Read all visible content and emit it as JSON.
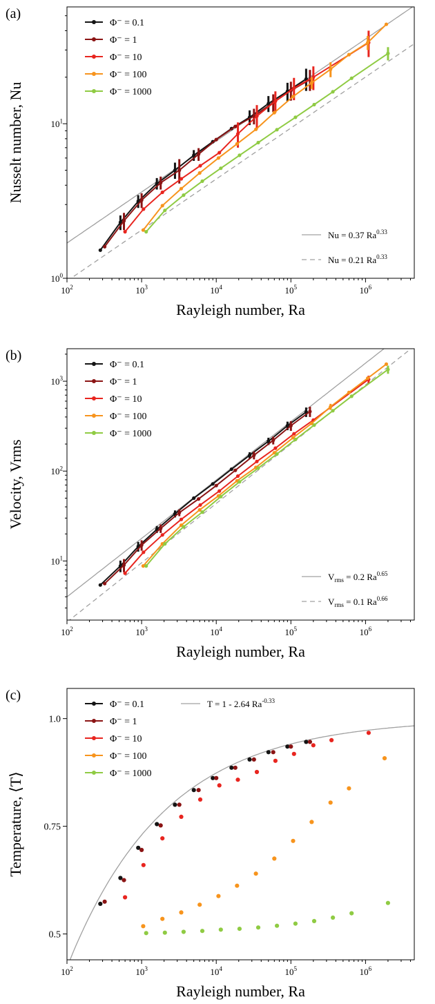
{
  "figure": {
    "colors": {
      "phi_0.1": "#141414",
      "phi_1": "#8b1414",
      "phi_10": "#e8251f",
      "phi_100": "#f7941d",
      "phi_1000": "#8fcb43",
      "fit": "#a0a0a0"
    }
  },
  "chart_data": [
    {
      "panel_label": "(a)",
      "type": "line",
      "xscale": "log",
      "yscale": "log",
      "xlim": [
        100,
        4500000
      ],
      "ylim": [
        1,
        57
      ],
      "xlabel": "Rayleigh number, Ra",
      "ylabel": "Nusselt number, Nu",
      "xticks": [
        {
          "value": 100,
          "base": "10",
          "exp": "2"
        },
        {
          "value": 1000,
          "base": "10",
          "exp": "3"
        },
        {
          "value": 10000,
          "base": "10",
          "exp": "4"
        },
        {
          "value": 100000,
          "base": "10",
          "exp": "5"
        },
        {
          "value": 1000000,
          "base": "10",
          "exp": "6"
        }
      ],
      "yticks": [
        {
          "value": 1,
          "base": "10",
          "exp": "0"
        },
        {
          "value": 10,
          "base": "10",
          "exp": "1"
        }
      ],
      "legend_position": "top-left",
      "fit_legend_position": "bottom-right",
      "series": [
        {
          "name": "Φ⁻ = 0.1",
          "color": "#141414",
          "x": [
            280,
            520,
            900,
            1600,
            2800,
            5000,
            9000,
            16000,
            28000,
            50000,
            90000,
            160000
          ],
          "y": [
            1.52,
            2.3,
            3.15,
            4.1,
            5.0,
            6.25,
            7.65,
            9.3,
            11.0,
            13.5,
            16.2,
            19.5
          ],
          "err": [
            0,
            0.25,
            0.3,
            0.35,
            0.6,
            0.5,
            0,
            0,
            1.2,
            1.6,
            2.2,
            3.2
          ]
        },
        {
          "name": "Φ⁻ = 1",
          "color": "#8b1414",
          "x": [
            320,
            580,
            1000,
            1800,
            3200,
            5800,
            10000,
            18000,
            32000,
            58000,
            100000,
            180000
          ],
          "y": [
            1.6,
            2.35,
            3.2,
            4.15,
            5.0,
            6.35,
            7.9,
            9.6,
            11.2,
            13.7,
            16.4,
            19.3
          ],
          "err": [
            0,
            0.3,
            0.35,
            0.4,
            0.9,
            0.6,
            0,
            0,
            1.3,
            1.8,
            2.3,
            3.0
          ]
        },
        {
          "name": "Φ⁻ = 10",
          "color": "#e8251f",
          "x": [
            600,
            1060,
            1900,
            3400,
            6100,
            11000,
            19500,
            35000,
            62000,
            110000,
            200000,
            1100000
          ],
          "y": [
            2.0,
            2.8,
            3.6,
            4.4,
            5.35,
            6.5,
            8.6,
            11.2,
            14.0,
            17.0,
            20.0,
            33.5
          ],
          "err": [
            0,
            0,
            0,
            0,
            0,
            0,
            1.6,
            2.0,
            2.2,
            2.8,
            3.5,
            6.5
          ]
        },
        {
          "name": "Φ⁻ = 100",
          "color": "#f7941d",
          "x": [
            1050,
            1900,
            3400,
            6000,
            10700,
            19000,
            34000,
            60000,
            107000,
            190000,
            340000,
            600000,
            1070000,
            1900000
          ],
          "y": [
            2.05,
            2.95,
            3.8,
            4.8,
            6.0,
            7.4,
            9.2,
            11.8,
            15.0,
            18.4,
            22.5,
            28.0,
            33.5,
            44.0
          ],
          "err": [
            0,
            0,
            0,
            0,
            0,
            0,
            0,
            0,
            0,
            1.6,
            2.5,
            0,
            3.5,
            0
          ]
        },
        {
          "name": "Φ⁻ = 1000",
          "color": "#8fcb43",
          "x": [
            1150,
            2050,
            3650,
            6500,
            11500,
            20500,
            36500,
            65000,
            115000,
            205000,
            365000,
            650000,
            2000000
          ],
          "y": [
            2.0,
            2.75,
            3.45,
            4.25,
            5.15,
            6.25,
            7.55,
            9.15,
            11.0,
            13.3,
            16.1,
            19.7,
            28.5
          ],
          "err": [
            0,
            0,
            0,
            0,
            0,
            0,
            0,
            0,
            0,
            0,
            0,
            0,
            2.8
          ]
        }
      ],
      "fits": [
        {
          "label": "Nu = 0.37 Ra",
          "exp_label": "0.33",
          "a": 0.37,
          "b": 0.33,
          "style": "solid"
        },
        {
          "label": "Nu = 0.21 Ra",
          "exp_label": "0.33",
          "a": 0.21,
          "b": 0.33,
          "style": "dashed"
        }
      ]
    },
    {
      "panel_label": "(b)",
      "type": "line",
      "xscale": "log",
      "yscale": "log",
      "xlim": [
        100,
        4500000
      ],
      "ylim": [
        2.2,
        2300
      ],
      "xlabel": "Rayleigh number, Ra",
      "ylabel": "Velocity, Vrms",
      "xticks": [
        {
          "value": 100,
          "base": "10",
          "exp": "2"
        },
        {
          "value": 1000,
          "base": "10",
          "exp": "3"
        },
        {
          "value": 10000,
          "base": "10",
          "exp": "4"
        },
        {
          "value": 100000,
          "base": "10",
          "exp": "5"
        },
        {
          "value": 1000000,
          "base": "10",
          "exp": "6"
        }
      ],
      "yticks": [
        {
          "value": 10,
          "base": "10",
          "exp": "1"
        },
        {
          "value": 100,
          "base": "10",
          "exp": "2"
        },
        {
          "value": 1000,
          "base": "10",
          "exp": "3"
        }
      ],
      "legend_position": "top-left",
      "fit_legend_position": "bottom-right",
      "series": [
        {
          "name": "Φ⁻ = 0.1",
          "color": "#141414",
          "x": [
            280,
            520,
            900,
            1600,
            2800,
            5000,
            9000,
            16000,
            28000,
            50000,
            90000,
            160000
          ],
          "y": [
            5.4,
            8.8,
            14.5,
            22.5,
            33.5,
            50,
            72,
            105,
            150,
            215,
            320,
            455
          ],
          "err": [
            0,
            1.3,
            1.8,
            2.0,
            3.0,
            0,
            0,
            0,
            12,
            20,
            35,
            55
          ]
        },
        {
          "name": "Φ⁻ = 1",
          "color": "#8b1414",
          "x": [
            320,
            580,
            1000,
            1800,
            3200,
            5800,
            10000,
            18000,
            32000,
            58000,
            100000,
            180000
          ],
          "y": [
            5.6,
            9.0,
            15.0,
            23.0,
            34.5,
            49,
            69,
            102,
            150,
            220,
            320,
            460
          ],
          "err": [
            0,
            1.5,
            2.0,
            2.5,
            3.0,
            0,
            0,
            0,
            15,
            22,
            40,
            60
          ]
        },
        {
          "name": "Φ⁻ = 10",
          "color": "#e8251f",
          "x": [
            600,
            1060,
            1900,
            3400,
            6100,
            11000,
            19500,
            35000,
            62000,
            110000,
            200000,
            1100000
          ],
          "y": [
            7.3,
            12.5,
            19.5,
            29,
            42,
            60,
            88,
            128,
            180,
            260,
            370,
            1050
          ],
          "err": [
            0,
            0,
            0,
            0,
            0,
            0,
            0,
            0,
            0,
            0,
            0,
            100
          ]
        },
        {
          "name": "Φ⁻ = 100",
          "color": "#f7941d",
          "x": [
            1050,
            1900,
            3400,
            6000,
            10700,
            19000,
            34000,
            60000,
            107000,
            190000,
            340000,
            600000,
            1070000,
            1900000
          ],
          "y": [
            8.8,
            15.5,
            25,
            37,
            53,
            78,
            110,
            160,
            235,
            340,
            520,
            750,
            1080,
            1550
          ],
          "err": [
            0,
            0,
            0,
            0,
            0,
            0,
            0,
            0,
            0,
            0,
            40,
            0,
            0,
            0
          ]
        },
        {
          "name": "Φ⁻ = 1000",
          "color": "#8fcb43",
          "x": [
            1150,
            2050,
            3650,
            6500,
            11500,
            20500,
            36500,
            65000,
            115000,
            205000,
            365000,
            650000,
            2000000
          ],
          "y": [
            8.8,
            15.5,
            24,
            35,
            52,
            76,
            108,
            155,
            225,
            325,
            470,
            680,
            1350
          ],
          "err": [
            0,
            0,
            0,
            0,
            0,
            0,
            0,
            0,
            0,
            0,
            0,
            0,
            140
          ]
        }
      ],
      "fits": [
        {
          "label": "V",
          "sub": "rms",
          "label_tail": " = 0.2 Ra",
          "exp_label": "0.65",
          "a": 0.2,
          "b": 0.65,
          "style": "solid"
        },
        {
          "label": "V",
          "sub": "rms",
          "label_tail": " = 0.1 Ra",
          "exp_label": "0.66",
          "a": 0.1,
          "b": 0.66,
          "style": "dashed"
        }
      ]
    },
    {
      "panel_label": "(c)",
      "type": "scatter",
      "xscale": "log",
      "yscale": "linear",
      "xlim": [
        100,
        4500000
      ],
      "ylim": [
        0.44,
        1.07
      ],
      "xlabel": "Rayleigh number, Ra",
      "ylabel": "Temperature, ⟨T⟩",
      "xticks": [
        {
          "value": 100,
          "base": "10",
          "exp": "2"
        },
        {
          "value": 1000,
          "base": "10",
          "exp": "3"
        },
        {
          "value": 10000,
          "base": "10",
          "exp": "4"
        },
        {
          "value": 100000,
          "base": "10",
          "exp": "5"
        },
        {
          "value": 1000000,
          "base": "10",
          "exp": "6"
        }
      ],
      "yticks": [
        {
          "value": 0.5,
          "label": "0.5"
        },
        {
          "value": 0.75,
          "label": "0.75"
        },
        {
          "value": 1.0,
          "label": "1.0"
        }
      ],
      "legend_position": "top-left",
      "series": [
        {
          "name": "Φ⁻ = 0.1",
          "color": "#141414",
          "x": [
            280,
            520,
            900,
            1600,
            2800,
            5000,
            9000,
            16000,
            28000,
            50000,
            90000,
            160000
          ],
          "y": [
            0.57,
            0.63,
            0.7,
            0.755,
            0.8,
            0.834,
            0.862,
            0.886,
            0.905,
            0.922,
            0.935,
            0.946
          ]
        },
        {
          "name": "Φ⁻ = 1",
          "color": "#8b1414",
          "x": [
            320,
            580,
            1000,
            1800,
            3200,
            5800,
            10000,
            18000,
            32000,
            58000,
            100000,
            180000
          ],
          "y": [
            0.575,
            0.625,
            0.695,
            0.752,
            0.8,
            0.834,
            0.862,
            0.886,
            0.905,
            0.922,
            0.935,
            0.946
          ]
        },
        {
          "name": "Φ⁻ = 10",
          "color": "#e8251f",
          "x": [
            600,
            1060,
            1900,
            3400,
            6100,
            11000,
            19500,
            35000,
            62000,
            110000,
            200000,
            350000,
            1100000
          ],
          "y": [
            0.585,
            0.66,
            0.722,
            0.772,
            0.812,
            0.845,
            0.858,
            0.876,
            0.902,
            0.918,
            0.938,
            0.95,
            0.967
          ]
        },
        {
          "name": "Φ⁻ = 100",
          "color": "#f7941d",
          "x": [
            1050,
            1900,
            3400,
            6000,
            10700,
            19000,
            34000,
            60000,
            107000,
            190000,
            340000,
            600000,
            1800000
          ],
          "y": [
            0.518,
            0.535,
            0.55,
            0.568,
            0.588,
            0.612,
            0.64,
            0.675,
            0.716,
            0.76,
            0.805,
            0.838,
            0.908
          ]
        },
        {
          "name": "Φ⁻ = 1000",
          "color": "#8fcb43",
          "x": [
            1150,
            2050,
            3650,
            6500,
            11500,
            20500,
            36500,
            65000,
            115000,
            205000,
            365000,
            650000,
            2000000
          ],
          "y": [
            0.502,
            0.503,
            0.505,
            0.507,
            0.51,
            0.512,
            0.515,
            0.519,
            0.524,
            0.53,
            0.538,
            0.548,
            0.572
          ]
        }
      ],
      "fits": [
        {
          "label": "T = 1 - 2.64 Ra",
          "exp_label": "-0.33",
          "a": 2.64,
          "b": -0.33,
          "style": "solid",
          "form": "one_minus"
        }
      ]
    }
  ]
}
